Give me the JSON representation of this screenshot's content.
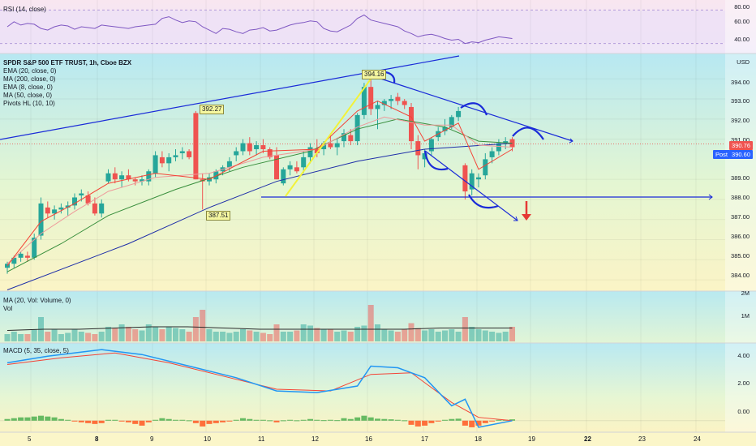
{
  "colors": {
    "up": "#26a69a",
    "down": "#ef5350",
    "ema20": "#ef9a9a",
    "ma200": "#1e2ea8",
    "ema8": "#f44336",
    "ma50": "#388e3c",
    "rsi": "#7e57c2",
    "macd": "#2196f3",
    "signal": "#f44336",
    "annot": "#1a2bd8"
  },
  "panes": {
    "rsi": {
      "legend": "RSI (14, close)",
      "ticks": [
        "80.00",
        "60.00",
        "40.00"
      ]
    },
    "price": {
      "legend": [
        "SPDR S&P 500 ETF TRUST, 1h, Cboe BZX",
        "EMA (20, close, 0)",
        "MA (200, close, 0)",
        "EMA (8, close, 0)",
        "MA (50, close, 0)",
        "Pivots HL (10, 10)"
      ],
      "currency": "USD",
      "ticks": [
        "394.00",
        "393.00",
        "392.00",
        "391.00",
        "389.00",
        "388.00",
        "387.00",
        "386.00",
        "385.00",
        "384.00"
      ],
      "last_price": "390.76",
      "post_label": "Post",
      "post_price": "390.60",
      "pivot_labels": [
        "394.16",
        "392.27",
        "387.51"
      ]
    },
    "volume": {
      "legend": [
        "MA (20, Vol: Volume, 0)",
        "Vol"
      ],
      "ticks": [
        "2M",
        "1M"
      ]
    },
    "macd": {
      "legend": "MACD (5, 35, close, 5)",
      "ticks": [
        "4.00",
        "2.00",
        "0.00"
      ]
    }
  },
  "x_axis": [
    "5",
    "8",
    "9",
    "10",
    "11",
    "12",
    "16",
    "17",
    "18",
    "19",
    "22",
    "23",
    "24"
  ],
  "chart_data": [
    {
      "type": "candlestick",
      "title": "SPDR S&P 500 ETF TRUST, 1h, Cboe BZX",
      "ylim": [
        383.6,
        395.1
      ],
      "candles": [
        [
          384.6,
          384.9,
          384.3,
          384.8
        ],
        [
          384.8,
          385.2,
          384.6,
          385.1
        ],
        [
          385.1,
          385.4,
          384.9,
          385.3
        ],
        [
          385.2,
          385.4,
          384.9,
          385.1
        ],
        [
          385.1,
          386.3,
          385.0,
          386.1
        ],
        [
          386.2,
          388.1,
          386.0,
          387.8
        ],
        [
          387.6,
          387.9,
          387.1,
          387.3
        ],
        [
          387.3,
          387.7,
          387.0,
          387.5
        ],
        [
          387.5,
          387.8,
          387.3,
          387.6
        ],
        [
          387.6,
          387.9,
          387.2,
          387.7
        ],
        [
          387.7,
          388.3,
          387.5,
          388.1
        ],
        [
          388.2,
          388.5,
          387.9,
          388.3
        ],
        [
          388.2,
          388.4,
          387.7,
          387.8
        ],
        [
          387.8,
          388.1,
          387.2,
          387.3
        ],
        [
          387.3,
          388.0,
          387.1,
          387.8
        ],
        [
          388.9,
          389.5,
          388.8,
          389.3
        ],
        [
          389.3,
          389.6,
          388.8,
          389.0
        ],
        [
          389.0,
          389.4,
          388.6,
          389.2
        ],
        [
          389.2,
          389.5,
          388.9,
          389.0
        ],
        [
          389.0,
          389.1,
          388.7,
          388.9
        ],
        [
          388.9,
          389.2,
          388.7,
          389.0
        ],
        [
          388.9,
          389.5,
          388.7,
          389.4
        ],
        [
          389.3,
          390.4,
          389.1,
          390.2
        ],
        [
          390.1,
          390.4,
          389.6,
          389.8
        ],
        [
          389.8,
          390.3,
          389.4,
          390.1
        ],
        [
          390.1,
          390.5,
          389.9,
          390.2
        ],
        [
          390.3,
          390.6,
          390.0,
          390.4
        ],
        [
          390.4,
          390.5,
          390.0,
          390.1
        ],
        [
          392.3,
          392.4,
          389.0,
          389.0
        ],
        [
          389.0,
          389.3,
          387.5,
          388.9
        ],
        [
          388.9,
          389.3,
          388.7,
          389.1
        ],
        [
          389.0,
          389.5,
          388.8,
          389.4
        ],
        [
          389.4,
          389.7,
          389.2,
          389.6
        ],
        [
          389.6,
          390.1,
          389.4,
          389.9
        ],
        [
          390.2,
          390.6,
          389.9,
          390.4
        ],
        [
          390.4,
          391.0,
          390.2,
          390.8
        ],
        [
          390.8,
          391.1,
          390.2,
          390.4
        ],
        [
          390.5,
          390.9,
          390.2,
          390.7
        ],
        [
          390.7,
          391.0,
          390.3,
          390.5
        ],
        [
          390.5,
          390.6,
          390.0,
          390.1
        ],
        [
          390.2,
          390.6,
          389.0,
          389.0
        ],
        [
          388.8,
          389.6,
          388.7,
          389.5
        ],
        [
          389.5,
          389.9,
          389.2,
          389.7
        ],
        [
          389.6,
          389.9,
          389.3,
          389.4
        ],
        [
          389.6,
          390.4,
          389.3,
          390.1
        ],
        [
          390.1,
          390.8,
          389.8,
          390.6
        ],
        [
          390.5,
          391.0,
          390.1,
          390.3
        ],
        [
          390.5,
          390.9,
          390.2,
          390.8
        ],
        [
          390.8,
          391.2,
          390.5,
          390.6
        ],
        [
          390.6,
          391.0,
          390.2,
          390.8
        ],
        [
          390.9,
          391.5,
          390.6,
          391.3
        ],
        [
          391.2,
          391.5,
          390.7,
          390.9
        ],
        [
          390.9,
          392.3,
          390.7,
          392.2
        ],
        [
          392.2,
          393.8,
          392.0,
          393.6
        ],
        [
          393.6,
          394.16,
          392.2,
          392.5
        ],
        [
          392.5,
          392.9,
          391.5,
          392.7
        ],
        [
          392.7,
          393.0,
          392.4,
          392.9
        ],
        [
          392.9,
          393.2,
          392.5,
          393.0
        ],
        [
          393.1,
          393.3,
          392.7,
          392.9
        ],
        [
          392.9,
          393.0,
          392.5,
          392.7
        ],
        [
          392.6,
          392.8,
          390.5,
          390.9
        ],
        [
          390.9,
          391.2,
          389.5,
          390.2
        ],
        [
          390.0,
          390.5,
          389.6,
          390.3
        ],
        [
          390.4,
          391.1,
          390.2,
          391.0
        ],
        [
          391.1,
          391.6,
          390.9,
          391.4
        ],
        [
          391.4,
          392.0,
          391.2,
          391.6
        ],
        [
          391.6,
          392.2,
          391.5,
          392.1
        ],
        [
          392.1,
          392.6,
          391.9,
          392.4
        ],
        [
          389.7,
          389.8,
          388.0,
          388.4
        ],
        [
          388.5,
          389.5,
          388.2,
          389.3
        ],
        [
          389.0,
          389.3,
          388.6,
          389.1
        ],
        [
          389.2,
          390.3,
          389.0,
          390.0
        ],
        [
          390.1,
          390.6,
          389.8,
          390.4
        ],
        [
          390.4,
          391.0,
          390.2,
          390.8
        ],
        [
          390.8,
          391.1,
          390.5,
          390.9
        ],
        [
          391.0,
          391.1,
          390.4,
          390.6
        ]
      ],
      "ma200": [
        [
          0,
          383.5
        ],
        [
          18,
          385.8
        ],
        [
          30,
          387.6
        ],
        [
          40,
          388.9
        ],
        [
          52,
          389.9
        ],
        [
          62,
          390.5
        ],
        [
          75,
          390.8
        ]
      ],
      "ma50": [
        [
          0,
          384.4
        ],
        [
          8,
          385.8
        ],
        [
          15,
          387.2
        ],
        [
          25,
          388.5
        ],
        [
          35,
          389.6
        ],
        [
          45,
          390.4
        ],
        [
          52,
          391.5
        ],
        [
          58,
          392.0
        ],
        [
          65,
          391.6
        ],
        [
          70,
          390.9
        ],
        [
          75,
          390.8
        ]
      ],
      "ema20": [
        [
          0,
          384.8
        ],
        [
          5,
          386.3
        ],
        [
          10,
          387.4
        ],
        [
          15,
          388.4
        ],
        [
          22,
          389.1
        ],
        [
          30,
          389.3
        ],
        [
          38,
          390.1
        ],
        [
          46,
          390.5
        ],
        [
          52,
          391.6
        ],
        [
          56,
          392.1
        ],
        [
          62,
          391.7
        ],
        [
          66,
          391.7
        ],
        [
          70,
          390.7
        ],
        [
          75,
          390.6
        ]
      ],
      "ema8": [
        [
          0,
          384.7
        ],
        [
          5,
          386.9
        ],
        [
          10,
          387.8
        ],
        [
          15,
          388.8
        ],
        [
          22,
          389.3
        ],
        [
          30,
          389.0
        ],
        [
          38,
          390.4
        ],
        [
          46,
          390.5
        ],
        [
          52,
          392.4
        ],
        [
          55,
          392.9
        ],
        [
          60,
          392.1
        ],
        [
          62,
          390.9
        ],
        [
          67,
          391.8
        ],
        [
          70,
          389.5
        ],
        [
          75,
          390.5
        ]
      ]
    },
    {
      "type": "line",
      "title": "RSI (14, close)",
      "ylim": [
        30,
        90
      ],
      "values": [
        60,
        66,
        62,
        64,
        63,
        58,
        56,
        60,
        62,
        61,
        57,
        60,
        59,
        58,
        62,
        61,
        60,
        59,
        58,
        60,
        61,
        62,
        63,
        70,
        72,
        68,
        65,
        67,
        66,
        60,
        56,
        52,
        58,
        57,
        54,
        52,
        56,
        57,
        59,
        55,
        56,
        59,
        62,
        64,
        65,
        67,
        66,
        58,
        55,
        54,
        58,
        62,
        70,
        74,
        68,
        66,
        64,
        62,
        60,
        55,
        52,
        48,
        50,
        51,
        49,
        46,
        44,
        45,
        40,
        42,
        41,
        44,
        46,
        48,
        47,
        46
      ]
    },
    {
      "type": "bar",
      "title": "Vol",
      "ylim": [
        0,
        2.0
      ],
      "values": [
        0.3,
        0.4,
        0.3,
        0.3,
        0.5,
        1.0,
        0.4,
        0.5,
        0.3,
        0.35,
        0.5,
        0.4,
        0.35,
        0.3,
        0.4,
        0.6,
        0.55,
        0.7,
        0.6,
        0.5,
        0.45,
        0.7,
        0.6,
        0.5,
        0.6,
        0.55,
        0.5,
        0.4,
        1.0,
        1.3,
        0.5,
        0.4,
        0.4,
        0.35,
        0.4,
        0.5,
        0.45,
        0.4,
        0.35,
        0.3,
        0.7,
        0.4,
        0.4,
        0.45,
        0.7,
        0.65,
        0.55,
        0.5,
        0.5,
        0.4,
        0.45,
        0.4,
        0.6,
        0.65,
        1.5,
        0.7,
        0.5,
        0.45,
        0.4,
        0.5,
        0.75,
        0.55,
        0.45,
        0.5,
        0.4,
        0.45,
        0.5,
        0.4,
        1.0,
        0.6,
        0.5,
        0.45,
        0.4,
        0.35,
        0.4,
        0.6
      ],
      "ma20": [
        0.45,
        0.5,
        0.5,
        0.55,
        0.6,
        0.6,
        0.55,
        0.5,
        0.5,
        0.5,
        0.5,
        0.5,
        0.55,
        0.55,
        0.55
      ]
    },
    {
      "type": "bar",
      "title": "MACD (5, 35, close, 5)",
      "ylim": [
        -0.6,
        4.6
      ],
      "histogram": [
        0.1,
        0.15,
        0.2,
        0.2,
        0.25,
        0.3,
        0.25,
        0.2,
        0.1,
        0.05,
        -0.05,
        -0.1,
        -0.15,
        -0.2,
        -0.15,
        0.05,
        0.05,
        -0.05,
        -0.1,
        -0.2,
        -0.3,
        -0.1,
        0.05,
        0.15,
        0.1,
        0.05,
        0.05,
        0.02,
        -0.15,
        -0.35,
        -0.2,
        -0.15,
        -0.1,
        -0.05,
        0.05,
        0.15,
        0.1,
        0.05,
        0.05,
        0.02,
        -0.1,
        0.02,
        0.05,
        0.02,
        0.05,
        0.1,
        0.05,
        0.03,
        0.05,
        0.03,
        0.15,
        0.1,
        0.2,
        0.3,
        0.2,
        0.12,
        0.1,
        0.08,
        0.05,
        0.02,
        -0.25,
        -0.35,
        -0.3,
        -0.15,
        -0.05,
        0.05,
        0.1,
        0.12,
        -0.3,
        -0.4,
        -0.3,
        -0.15,
        -0.05,
        0.05,
        0.05,
        0.08
      ],
      "macd": [
        [
          0,
          3.5
        ],
        [
          6,
          3.9
        ],
        [
          14,
          4.3
        ],
        [
          20,
          4.0
        ],
        [
          28,
          3.2
        ],
        [
          34,
          2.6
        ],
        [
          40,
          1.8
        ],
        [
          46,
          1.7
        ],
        [
          52,
          2.1
        ],
        [
          54,
          3.3
        ],
        [
          58,
          3.2
        ],
        [
          62,
          2.6
        ],
        [
          66,
          0.9
        ],
        [
          68,
          1.3
        ],
        [
          70,
          -0.4
        ],
        [
          75,
          0.0
        ]
      ],
      "signal": [
        [
          0,
          3.4
        ],
        [
          8,
          3.8
        ],
        [
          16,
          4.1
        ],
        [
          24,
          3.5
        ],
        [
          32,
          2.7
        ],
        [
          40,
          1.9
        ],
        [
          48,
          1.8
        ],
        [
          54,
          2.8
        ],
        [
          60,
          2.9
        ],
        [
          66,
          1.1
        ],
        [
          70,
          0.2
        ],
        [
          75,
          0.0
        ]
      ]
    }
  ]
}
